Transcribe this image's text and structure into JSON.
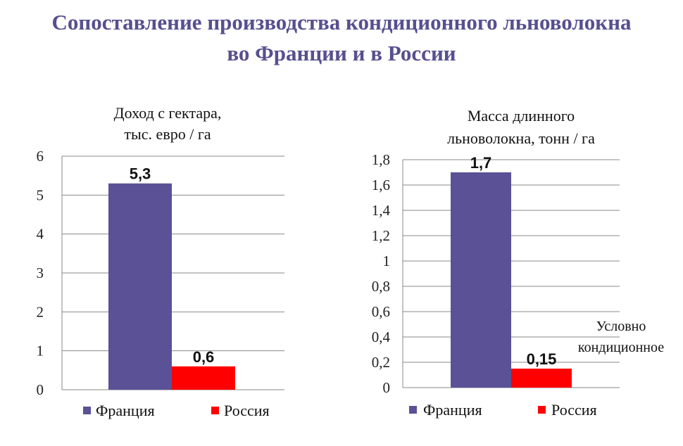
{
  "slide": {
    "title_lines": [
      "Сопоставление производства кондиционного льноволокна",
      "во Франции и в России"
    ]
  },
  "colors": {
    "title": "#574f8f",
    "france": "#5a5196",
    "russia": "#ff0000"
  },
  "chart_data": [
    {
      "type": "bar",
      "title_lines": [
        "Доход с гектара,",
        "тыс. евро / га"
      ],
      "categories": [
        ""
      ],
      "series": [
        {
          "name": "Франция",
          "values": [
            5.3
          ],
          "label": "5,3",
          "color": "#5a5196"
        },
        {
          "name": "Россия",
          "values": [
            0.6
          ],
          "label": "0,6",
          "color": "#ff0000"
        }
      ],
      "ylim": [
        0,
        6
      ],
      "yticks": [
        "0",
        "1",
        "2",
        "3",
        "4",
        "5",
        "6"
      ],
      "grid": true,
      "legend": "bottom"
    },
    {
      "type": "bar",
      "title_lines": [
        "Масса длинного",
        "льноволокна, тонн / га"
      ],
      "categories": [
        ""
      ],
      "series": [
        {
          "name": "Франция",
          "values": [
            1.7
          ],
          "label": "1,7",
          "color": "#5a5196"
        },
        {
          "name": "Россия",
          "values": [
            0.15
          ],
          "label": "0,15",
          "color": "#ff0000"
        }
      ],
      "ylim": [
        0,
        1.8
      ],
      "yticks": [
        "0",
        "0,2",
        "0,4",
        "0,6",
        "0,8",
        "1",
        "1,2",
        "1,4",
        "1,6",
        "1,8"
      ],
      "grid": true,
      "legend": "bottom",
      "annotation_lines": [
        "Условно",
        "кондиционное"
      ]
    }
  ]
}
